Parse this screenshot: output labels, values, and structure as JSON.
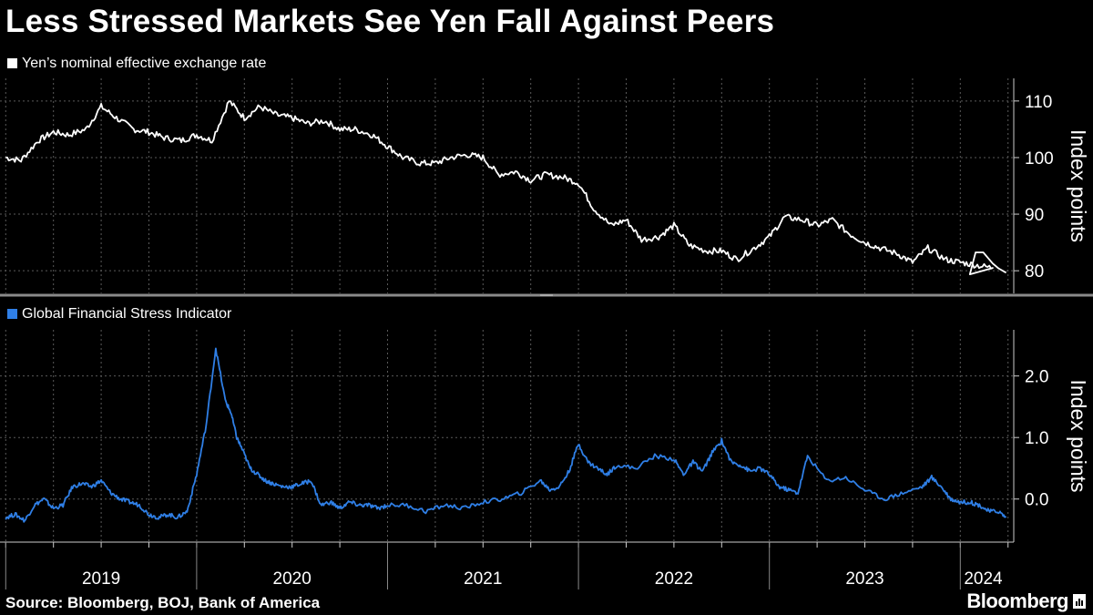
{
  "title": "Less Stressed Markets See Yen Fall Against Peers",
  "source": "Source: Bloomberg, BOJ, Bank of America",
  "brand": "Bloomberg",
  "colors": {
    "yen": "#ffffff",
    "stress": "#2f7fe6",
    "grid": "#5a5a5a",
    "axis": "#cccccc"
  },
  "chart_data": [
    {
      "type": "line",
      "title": "Yen's nominal effective exchange rate",
      "legend": "Yen’s nominal effective exchange rate",
      "ylabel": "Index points",
      "ylim": [
        76,
        114
      ],
      "yticks": [
        {
          "v": 80,
          "label": "80"
        },
        {
          "v": 90,
          "label": "90"
        },
        {
          "v": 100,
          "label": "100"
        },
        {
          "v": 110,
          "label": "110"
        }
      ],
      "x": [
        2019.0,
        2019.08,
        2019.17,
        2019.25,
        2019.33,
        2019.42,
        2019.5,
        2019.58,
        2019.67,
        2019.75,
        2019.83,
        2019.92,
        2020.0,
        2020.08,
        2020.17,
        2020.25,
        2020.33,
        2020.42,
        2020.5,
        2020.58,
        2020.67,
        2020.75,
        2020.83,
        2020.92,
        2021.0,
        2021.08,
        2021.17,
        2021.25,
        2021.33,
        2021.42,
        2021.5,
        2021.58,
        2021.67,
        2021.75,
        2021.83,
        2021.92,
        2022.0,
        2022.08,
        2022.17,
        2022.25,
        2022.33,
        2022.42,
        2022.5,
        2022.58,
        2022.67,
        2022.75,
        2022.83,
        2022.92,
        2023.0,
        2023.08,
        2023.17,
        2023.25,
        2023.33,
        2023.42,
        2023.5,
        2023.58,
        2023.67,
        2023.75,
        2023.83,
        2023.92,
        2024.0,
        2024.08,
        2024.17
      ],
      "values": [
        100,
        99.5,
        103,
        104.5,
        104,
        105,
        109,
        107,
        105,
        104.5,
        103.5,
        103,
        104,
        103,
        110,
        107,
        109,
        107.5,
        107,
        106,
        106.5,
        105,
        105,
        104,
        102,
        100,
        99,
        99,
        100,
        100.5,
        100,
        97,
        97.5,
        96,
        97,
        96.5,
        95.5,
        91,
        88,
        89,
        85.5,
        86,
        88,
        84.5,
        83.5,
        83.5,
        82,
        84,
        86,
        89.5,
        89,
        88,
        89,
        86.5,
        85,
        84,
        83,
        81.5,
        84,
        82,
        81.5,
        81,
        80.5
      ],
      "x_tail": [
        2024.05,
        2024.08,
        2024.12,
        2024.17,
        2024.2,
        2024.24
      ],
      "values_tail": [
        79.5,
        83.5,
        83.5,
        81.5,
        80.5,
        79.8
      ]
    },
    {
      "type": "line",
      "title": "Global Financial Stress Indicator",
      "legend": "Global Financial Stress Indicator",
      "ylabel": "Index points",
      "ylim": [
        -0.7,
        2.75
      ],
      "yticks": [
        {
          "v": 0,
          "label": "0.0"
        },
        {
          "v": 1,
          "label": "1.0"
        },
        {
          "v": 2,
          "label": "2.0"
        }
      ],
      "x": [
        2019.0,
        2019.05,
        2019.1,
        2019.15,
        2019.2,
        2019.25,
        2019.3,
        2019.35,
        2019.4,
        2019.45,
        2019.5,
        2019.55,
        2019.6,
        2019.65,
        2019.7,
        2019.75,
        2019.8,
        2019.85,
        2019.9,
        2019.95,
        2020.0,
        2020.05,
        2020.1,
        2020.15,
        2020.18,
        2020.21,
        2020.24,
        2020.28,
        2020.32,
        2020.36,
        2020.4,
        2020.45,
        2020.5,
        2020.55,
        2020.6,
        2020.65,
        2020.7,
        2020.75,
        2020.8,
        2020.85,
        2020.9,
        2020.95,
        2021.0,
        2021.1,
        2021.2,
        2021.3,
        2021.4,
        2021.5,
        2021.6,
        2021.7,
        2021.8,
        2021.85,
        2021.9,
        2021.95,
        2022.0,
        2022.05,
        2022.1,
        2022.15,
        2022.2,
        2022.3,
        2022.4,
        2022.5,
        2022.55,
        2022.6,
        2022.65,
        2022.7,
        2022.75,
        2022.8,
        2022.85,
        2022.9,
        2022.95,
        2023.0,
        2023.05,
        2023.1,
        2023.15,
        2023.2,
        2023.3,
        2023.4,
        2023.5,
        2023.6,
        2023.7,
        2023.8,
        2023.85,
        2023.9,
        2023.95,
        2024.0,
        2024.05,
        2024.1,
        2024.15,
        2024.2,
        2024.24
      ],
      "values": [
        -0.3,
        -0.25,
        -0.35,
        -0.1,
        0.0,
        -0.15,
        -0.1,
        0.2,
        0.25,
        0.2,
        0.3,
        0.1,
        0.0,
        -0.05,
        -0.1,
        -0.25,
        -0.3,
        -0.25,
        -0.3,
        -0.2,
        0.4,
        1.2,
        2.45,
        1.6,
        1.4,
        1.0,
        0.8,
        0.5,
        0.4,
        0.3,
        0.25,
        0.2,
        0.2,
        0.25,
        0.3,
        -0.1,
        -0.05,
        -0.15,
        -0.05,
        -0.1,
        -0.1,
        -0.15,
        -0.1,
        -0.1,
        -0.2,
        -0.1,
        -0.15,
        -0.05,
        0.0,
        0.1,
        0.3,
        0.15,
        0.2,
        0.45,
        0.9,
        0.6,
        0.5,
        0.4,
        0.55,
        0.5,
        0.7,
        0.65,
        0.4,
        0.6,
        0.45,
        0.75,
        0.95,
        0.6,
        0.55,
        0.45,
        0.5,
        0.4,
        0.2,
        0.15,
        0.1,
        0.7,
        0.3,
        0.35,
        0.15,
        0.0,
        0.1,
        0.2,
        0.35,
        0.2,
        0.0,
        -0.05,
        -0.05,
        -0.1,
        -0.2,
        -0.2,
        -0.3
      ]
    }
  ],
  "x_axis": {
    "range": [
      2018.97,
      2024.28
    ],
    "labels": [
      {
        "x": 2019.0,
        "label": "2019"
      },
      {
        "x": 2020.0,
        "label": "2020"
      },
      {
        "x": 2021.0,
        "label": "2021"
      },
      {
        "x": 2022.0,
        "label": "2022"
      },
      {
        "x": 2023.0,
        "label": "2023"
      },
      {
        "x": 2024.0,
        "label": "2024"
      }
    ]
  }
}
